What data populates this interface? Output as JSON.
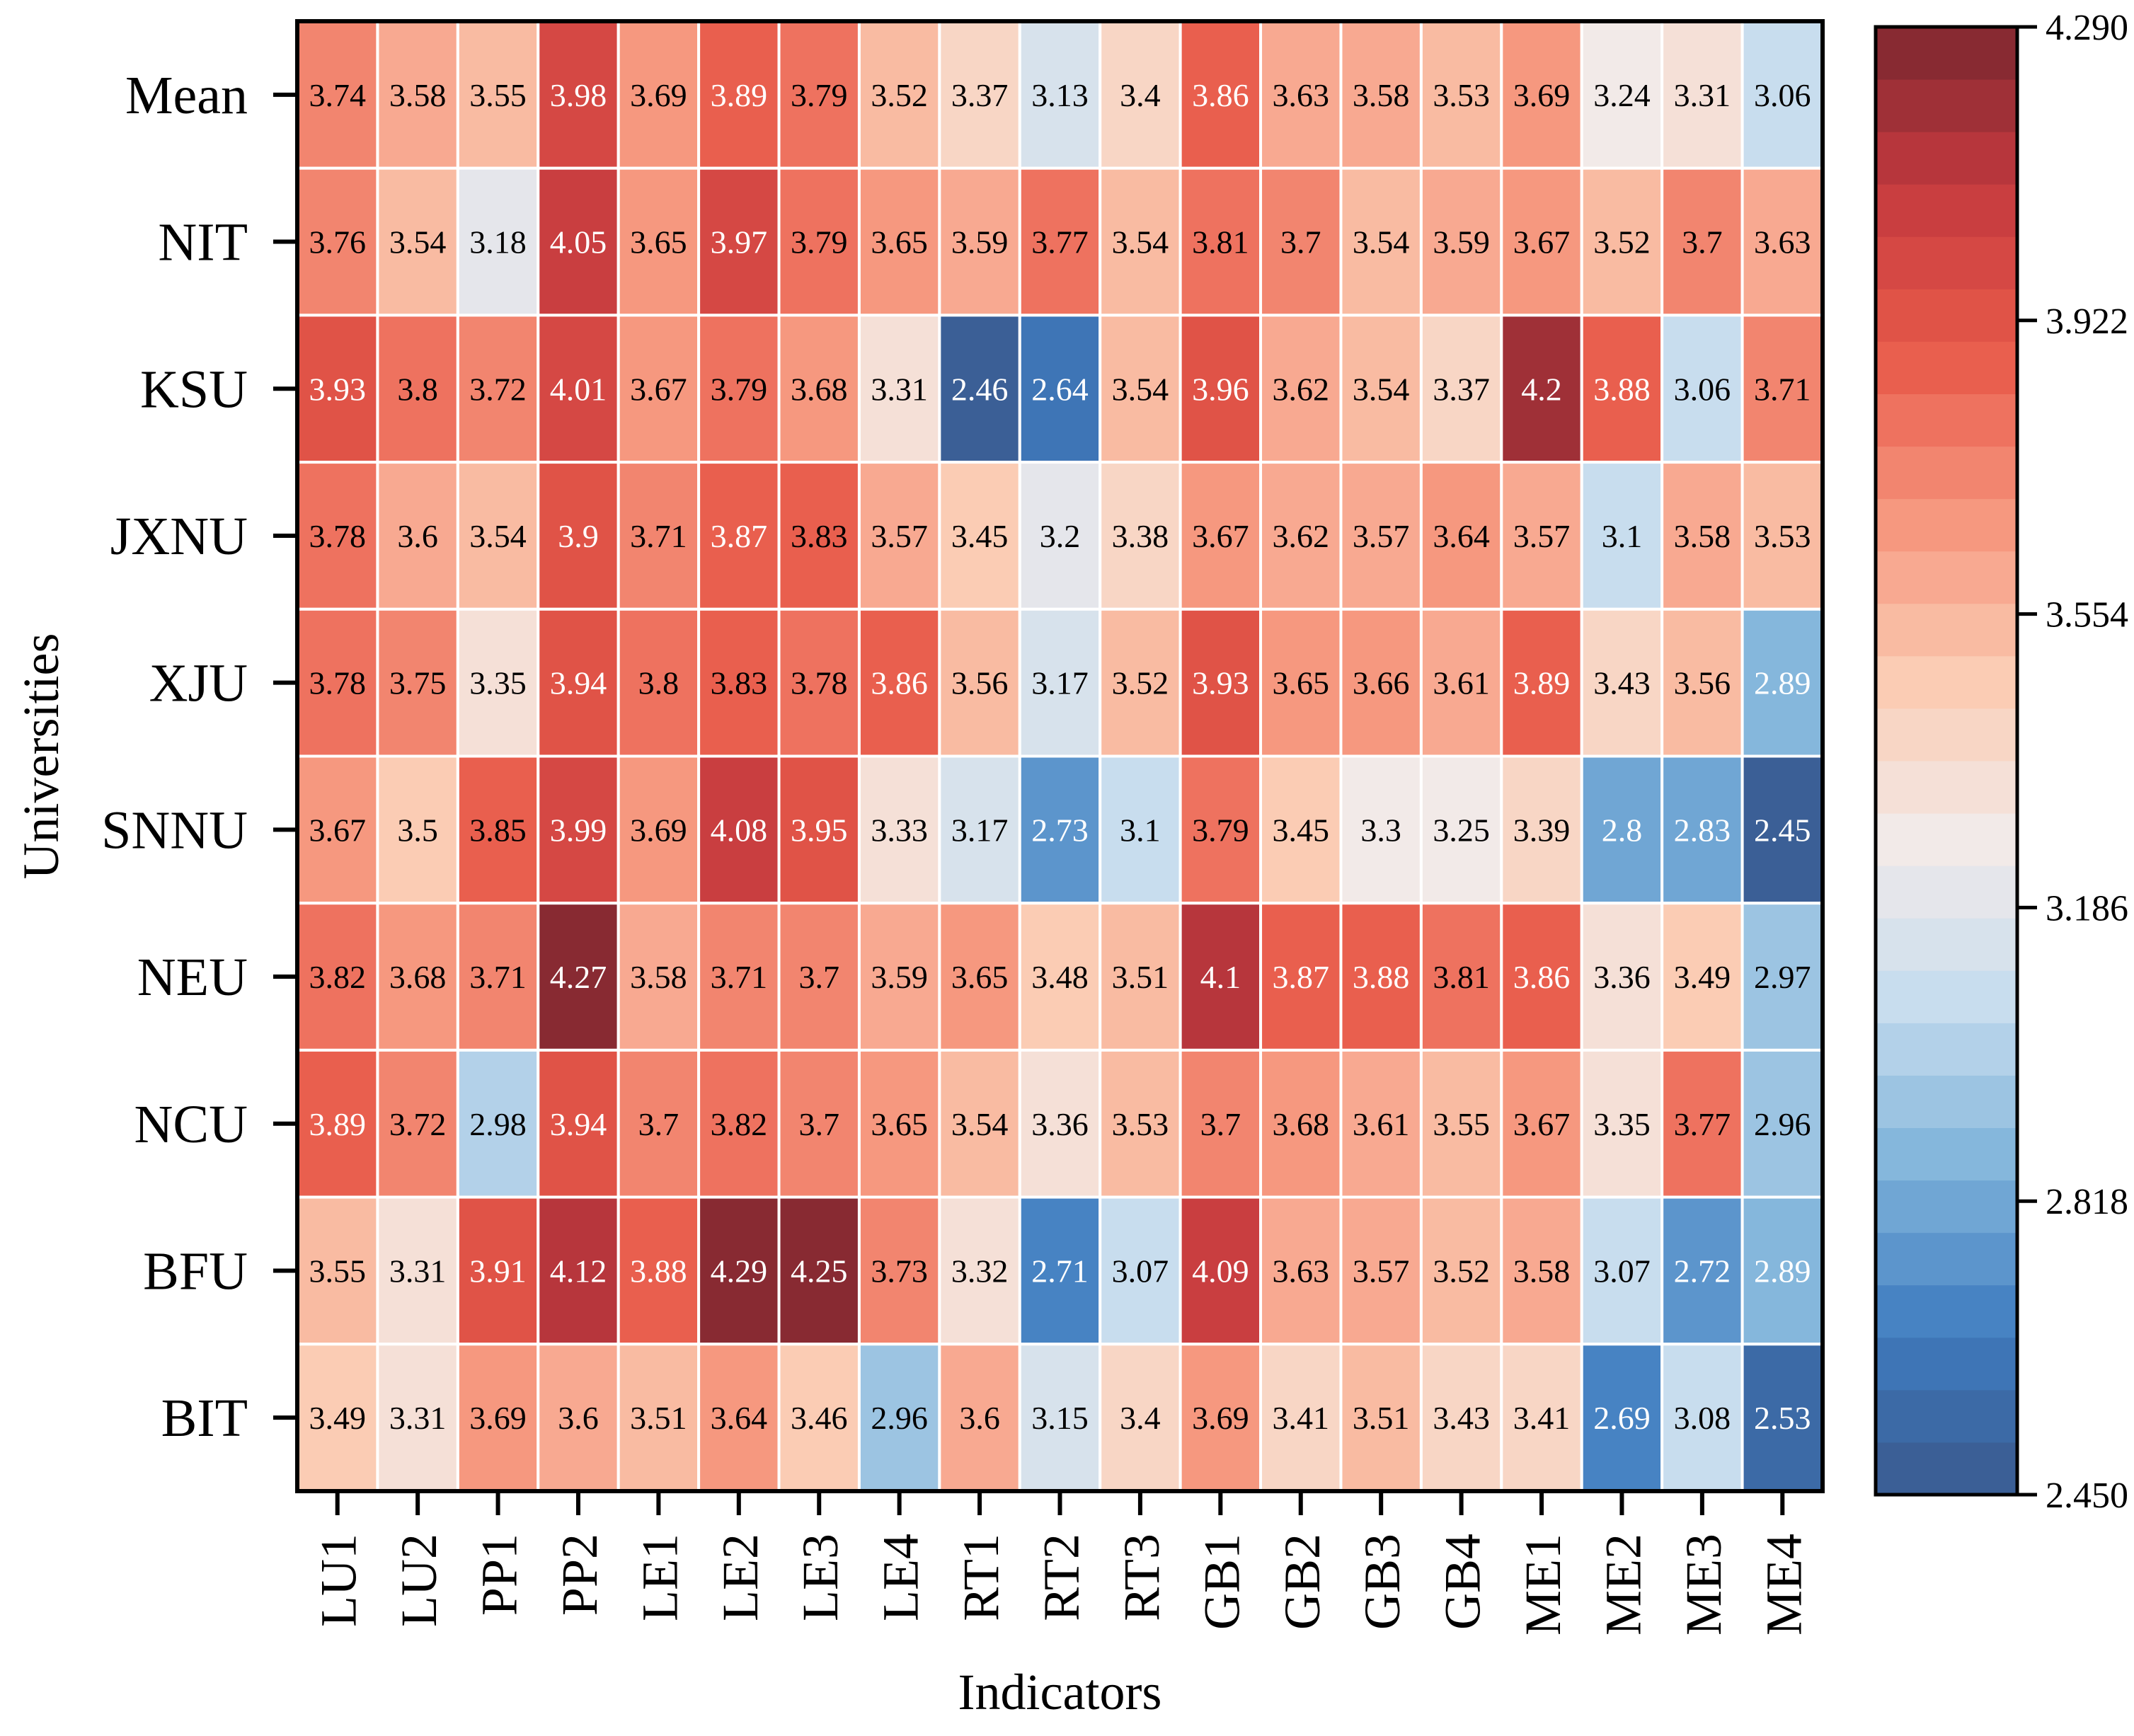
{
  "chart_data": {
    "type": "heatmap",
    "xlabel": "Indicators",
    "ylabel": "Universities",
    "x_categories": [
      "LU1",
      "LU2",
      "PP1",
      "PP2",
      "LE1",
      "LE2",
      "LE3",
      "LE4",
      "RT1",
      "RT2",
      "RT3",
      "GB1",
      "GB2",
      "GB3",
      "GB4",
      "ME1",
      "ME2",
      "ME3",
      "ME4"
    ],
    "y_categories": [
      "Mean",
      "NIT",
      "KSU",
      "JXNU",
      "XJU",
      "SNNU",
      "NEU",
      "NCU",
      "BFU",
      "BIT"
    ],
    "values": [
      [
        "3.74",
        "3.58",
        "3.55",
        "3.98",
        "3.69",
        "3.89",
        "3.79",
        "3.52",
        "3.37",
        "3.13",
        "3.4",
        "3.86",
        "3.63",
        "3.58",
        "3.53",
        "3.69",
        "3.24",
        "3.31",
        "3.06"
      ],
      [
        "3.76",
        "3.54",
        "3.18",
        "4.05",
        "3.65",
        "3.97",
        "3.79",
        "3.65",
        "3.59",
        "3.77",
        "3.54",
        "3.81",
        "3.7",
        "3.54",
        "3.59",
        "3.67",
        "3.52",
        "3.7",
        "3.63"
      ],
      [
        "3.93",
        "3.8",
        "3.72",
        "4.01",
        "3.67",
        "3.79",
        "3.68",
        "3.31",
        "2.46",
        "2.64",
        "3.54",
        "3.96",
        "3.62",
        "3.54",
        "3.37",
        "4.2",
        "3.88",
        "3.06",
        "3.71"
      ],
      [
        "3.78",
        "3.6",
        "3.54",
        "3.9",
        "3.71",
        "3.87",
        "3.83",
        "3.57",
        "3.45",
        "3.2",
        "3.38",
        "3.67",
        "3.62",
        "3.57",
        "3.64",
        "3.57",
        "3.1",
        "3.58",
        "3.53"
      ],
      [
        "3.78",
        "3.75",
        "3.35",
        "3.94",
        "3.8",
        "3.83",
        "3.78",
        "3.86",
        "3.56",
        "3.17",
        "3.52",
        "3.93",
        "3.65",
        "3.66",
        "3.61",
        "3.89",
        "3.43",
        "3.56",
        "2.89"
      ],
      [
        "3.67",
        "3.5",
        "3.85",
        "3.99",
        "3.69",
        "4.08",
        "3.95",
        "3.33",
        "3.17",
        "2.73",
        "3.1",
        "3.79",
        "3.45",
        "3.3",
        "3.25",
        "3.39",
        "2.8",
        "2.83",
        "2.45"
      ],
      [
        "3.82",
        "3.68",
        "3.71",
        "4.27",
        "3.58",
        "3.71",
        "3.7",
        "3.59",
        "3.65",
        "3.48",
        "3.51",
        "4.1",
        "3.87",
        "3.88",
        "3.81",
        "3.86",
        "3.36",
        "3.49",
        "2.97"
      ],
      [
        "3.89",
        "3.72",
        "2.98",
        "3.94",
        "3.7",
        "3.82",
        "3.7",
        "3.65",
        "3.54",
        "3.36",
        "3.53",
        "3.7",
        "3.68",
        "3.61",
        "3.55",
        "3.67",
        "3.35",
        "3.77",
        "2.96"
      ],
      [
        "3.55",
        "3.31",
        "3.91",
        "4.12",
        "3.88",
        "4.29",
        "4.25",
        "3.73",
        "3.32",
        "2.71",
        "3.07",
        "4.09",
        "3.63",
        "3.57",
        "3.52",
        "3.58",
        "3.07",
        "2.72",
        "2.89"
      ],
      [
        "3.49",
        "3.31",
        "3.69",
        "3.6",
        "3.51",
        "3.64",
        "3.46",
        "2.96",
        "3.6",
        "3.15",
        "3.4",
        "3.69",
        "3.41",
        "3.51",
        "3.43",
        "3.41",
        "2.69",
        "3.08",
        "2.53"
      ]
    ],
    "colorbar": {
      "min": 2.45,
      "max": 4.29,
      "ticks": [
        "2.450",
        "2.818",
        "3.186",
        "3.554",
        "3.922",
        "4.290"
      ],
      "levels": 28
    },
    "colormap_stops": [
      "#3a5a8e",
      "#3f7cc0",
      "#7fb3da",
      "#c6dcee",
      "#f2ebe9",
      "#fbcbb3",
      "#f6957c",
      "#e85a4a",
      "#c53a3f",
      "#7c2730"
    ],
    "grid_color": "#ffffff",
    "frame_color": "#000000"
  }
}
